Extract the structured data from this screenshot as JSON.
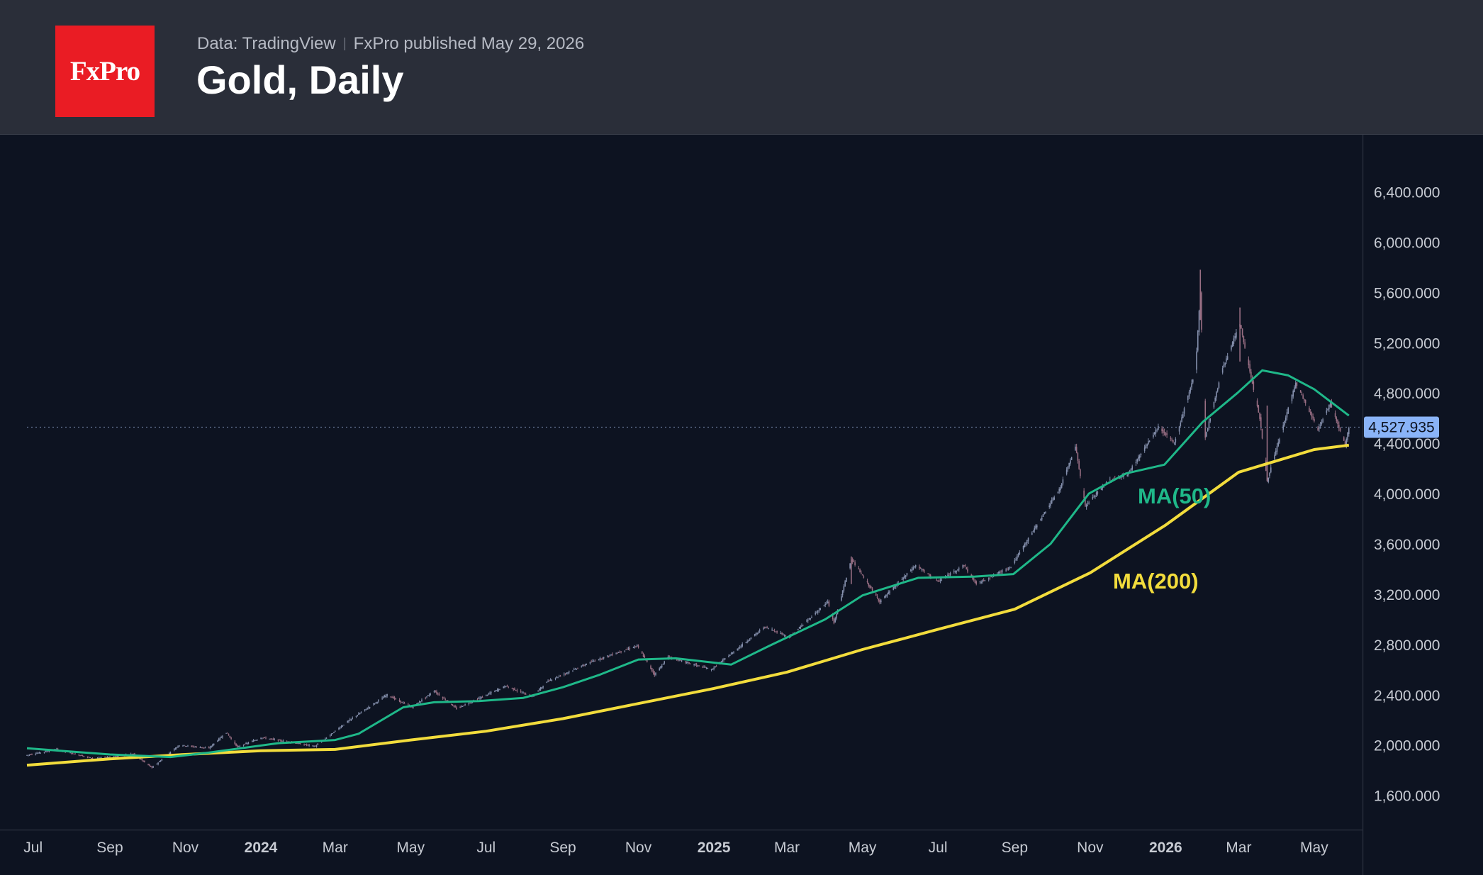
{
  "header": {
    "logo_text": "FxPro",
    "data_source": "Data: TradingView",
    "published": "FxPro published May 29, 2026",
    "title": "Gold, Daily"
  },
  "colors": {
    "header_bg": "#2a2e39",
    "chart_bg": "#0d1321",
    "logo_bg": "#ea1c24",
    "ma50": "#1fb889",
    "ma200": "#f2dc3c",
    "candle": "#8590ad",
    "price_label_bg": "#8ab4f8",
    "axis_text": "#c7cbd3"
  },
  "chart_data": {
    "type": "line",
    "title": "Gold, Daily",
    "x_axis": {
      "range": [
        "2023-06-26",
        "2026-06-05"
      ],
      "ticks": [
        {
          "date": "2023-07-01",
          "label": "Jul",
          "bold": false
        },
        {
          "date": "2023-09-01",
          "label": "Sep",
          "bold": false
        },
        {
          "date": "2023-11-01",
          "label": "Nov",
          "bold": false
        },
        {
          "date": "2024-01-01",
          "label": "2024",
          "bold": true
        },
        {
          "date": "2024-03-01",
          "label": "Mar",
          "bold": false
        },
        {
          "date": "2024-05-01",
          "label": "May",
          "bold": false
        },
        {
          "date": "2024-07-01",
          "label": "Jul",
          "bold": false
        },
        {
          "date": "2024-09-01",
          "label": "Sep",
          "bold": false
        },
        {
          "date": "2024-11-01",
          "label": "Nov",
          "bold": false
        },
        {
          "date": "2025-01-01",
          "label": "2025",
          "bold": true
        },
        {
          "date": "2025-03-01",
          "label": "Mar",
          "bold": false
        },
        {
          "date": "2025-05-01",
          "label": "May",
          "bold": false
        },
        {
          "date": "2025-07-01",
          "label": "Jul",
          "bold": false
        },
        {
          "date": "2025-09-01",
          "label": "Sep",
          "bold": false
        },
        {
          "date": "2025-11-01",
          "label": "Nov",
          "bold": false
        },
        {
          "date": "2026-01-01",
          "label": "2026",
          "bold": true
        },
        {
          "date": "2026-03-01",
          "label": "Mar",
          "bold": false
        },
        {
          "date": "2026-05-01",
          "label": "May",
          "bold": false
        }
      ]
    },
    "y_axis": {
      "range": [
        1350,
        6820
      ],
      "ticks": [
        {
          "value": 1600,
          "label": "1,600.000"
        },
        {
          "value": 2000,
          "label": "2,000.000"
        },
        {
          "value": 2400,
          "label": "2,400.000"
        },
        {
          "value": 2800,
          "label": "2,800.000"
        },
        {
          "value": 3200,
          "label": "3,200.000"
        },
        {
          "value": 3600,
          "label": "3,600.000"
        },
        {
          "value": 4000,
          "label": "4,000.000"
        },
        {
          "value": 4400,
          "label": "4,400.000"
        },
        {
          "value": 4800,
          "label": "4,800.000"
        },
        {
          "value": 5200,
          "label": "5,200.000"
        },
        {
          "value": 5600,
          "label": "5,600.000"
        },
        {
          "value": 6000,
          "label": "6,000.000"
        },
        {
          "value": 6400,
          "label": "6,400.000"
        }
      ]
    },
    "last_price": {
      "value": 4527.935,
      "label": "4,527.935"
    },
    "price_series": {
      "name": "Gold",
      "points": [
        [
          "2023-06-26",
          1920
        ],
        [
          "2023-07-20",
          1965
        ],
        [
          "2023-08-20",
          1890
        ],
        [
          "2023-09-20",
          1930
        ],
        [
          "2023-10-05",
          1820
        ],
        [
          "2023-10-27",
          2000
        ],
        [
          "2023-11-20",
          1975
        ],
        [
          "2023-12-04",
          2100
        ],
        [
          "2023-12-13",
          1985
        ],
        [
          "2024-01-02",
          2060
        ],
        [
          "2024-02-14",
          1990
        ],
        [
          "2024-03-10",
          2180
        ],
        [
          "2024-04-12",
          2400
        ],
        [
          "2024-05-02",
          2300
        ],
        [
          "2024-05-20",
          2430
        ],
        [
          "2024-06-07",
          2290
        ],
        [
          "2024-07-17",
          2470
        ],
        [
          "2024-08-07",
          2385
        ],
        [
          "2024-08-20",
          2510
        ],
        [
          "2024-09-26",
          2670
        ],
        [
          "2024-10-31",
          2790
        ],
        [
          "2024-11-14",
          2560
        ],
        [
          "2024-11-25",
          2700
        ],
        [
          "2024-12-30",
          2600
        ],
        [
          "2025-02-11",
          2940
        ],
        [
          "2025-03-03",
          2860
        ],
        [
          "2025-04-03",
          3140
        ],
        [
          "2025-04-08",
          2970
        ],
        [
          "2025-04-22",
          3480
        ],
        [
          "2025-05-15",
          3140
        ],
        [
          "2025-06-13",
          3430
        ],
        [
          "2025-07-01",
          3300
        ],
        [
          "2025-07-22",
          3430
        ],
        [
          "2025-08-01",
          3280
        ],
        [
          "2025-08-29",
          3420
        ],
        [
          "2025-09-15",
          3690
        ],
        [
          "2025-10-08",
          4050
        ],
        [
          "2025-10-20",
          4380
        ],
        [
          "2025-10-28",
          3900
        ],
        [
          "2025-11-15",
          4100
        ],
        [
          "2025-12-01",
          4150
        ],
        [
          "2025-12-26",
          4530
        ],
        [
          "2026-01-08",
          4400
        ],
        [
          "2026-01-25",
          4980
        ],
        [
          "2026-01-29",
          5600
        ],
        [
          "2026-02-02",
          4450
        ],
        [
          "2026-02-16",
          5000
        ],
        [
          "2026-03-02",
          5350
        ],
        [
          "2026-03-18",
          4600
        ],
        [
          "2026-03-24",
          4100
        ],
        [
          "2026-04-16",
          4880
        ],
        [
          "2026-05-04",
          4510
        ],
        [
          "2026-05-14",
          4720
        ],
        [
          "2026-05-26",
          4390
        ],
        [
          "2026-05-29",
          4527.935
        ]
      ]
    },
    "series": [
      {
        "name": "MA(50)",
        "points": [
          [
            "2023-06-26",
            1975
          ],
          [
            "2023-09-01",
            1925
          ],
          [
            "2023-10-20",
            1905
          ],
          [
            "2023-11-20",
            1940
          ],
          [
            "2024-01-15",
            2015
          ],
          [
            "2024-03-01",
            2040
          ],
          [
            "2024-03-20",
            2090
          ],
          [
            "2024-04-25",
            2300
          ],
          [
            "2024-05-20",
            2340
          ],
          [
            "2024-06-25",
            2350
          ],
          [
            "2024-07-31",
            2375
          ],
          [
            "2024-09-01",
            2460
          ],
          [
            "2024-10-01",
            2560
          ],
          [
            "2024-11-01",
            2680
          ],
          [
            "2024-12-01",
            2690
          ],
          [
            "2025-01-15",
            2640
          ],
          [
            "2025-02-15",
            2790
          ],
          [
            "2025-04-01",
            3000
          ],
          [
            "2025-05-01",
            3190
          ],
          [
            "2025-06-15",
            3330
          ],
          [
            "2025-07-31",
            3340
          ],
          [
            "2025-08-31",
            3360
          ],
          [
            "2025-09-30",
            3600
          ],
          [
            "2025-10-31",
            4000
          ],
          [
            "2025-11-30",
            4160
          ],
          [
            "2025-12-31",
            4230
          ],
          [
            "2026-01-31",
            4570
          ],
          [
            "2026-02-28",
            4800
          ],
          [
            "2026-03-20",
            4980
          ],
          [
            "2026-04-10",
            4940
          ],
          [
            "2026-05-01",
            4830
          ],
          [
            "2026-05-29",
            4620
          ]
        ]
      },
      {
        "name": "MA(200)",
        "points": [
          [
            "2023-06-26",
            1840
          ],
          [
            "2023-09-01",
            1890
          ],
          [
            "2023-11-01",
            1925
          ],
          [
            "2024-01-01",
            1955
          ],
          [
            "2024-03-01",
            1965
          ],
          [
            "2024-05-01",
            2040
          ],
          [
            "2024-07-01",
            2110
          ],
          [
            "2024-09-01",
            2210
          ],
          [
            "2024-11-01",
            2330
          ],
          [
            "2025-01-01",
            2450
          ],
          [
            "2025-03-01",
            2580
          ],
          [
            "2025-05-01",
            2760
          ],
          [
            "2025-07-01",
            2920
          ],
          [
            "2025-09-01",
            3080
          ],
          [
            "2025-11-01",
            3370
          ],
          [
            "2026-01-01",
            3750
          ],
          [
            "2026-03-01",
            4170
          ],
          [
            "2026-05-01",
            4350
          ],
          [
            "2026-05-29",
            4385
          ]
        ]
      }
    ]
  }
}
